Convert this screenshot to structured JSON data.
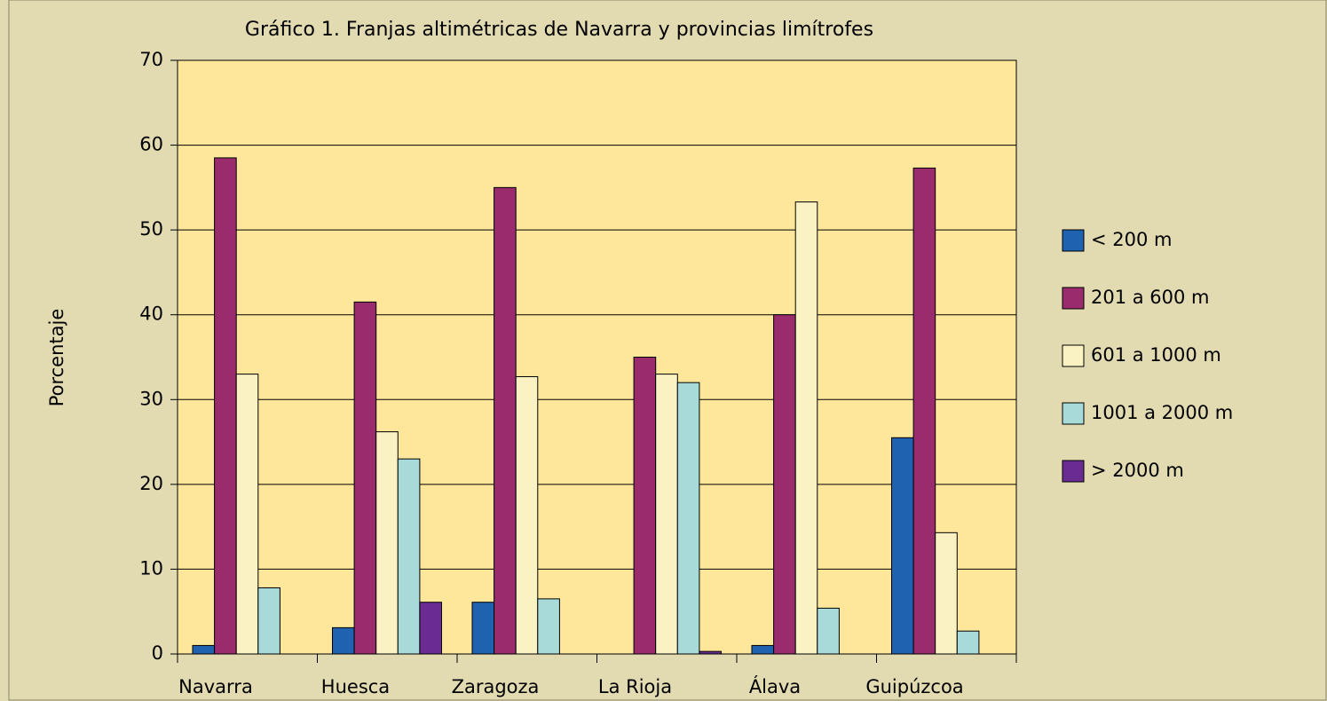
{
  "chart_data": {
    "type": "bar",
    "title": "Gráfico 1. Franjas altimétricas de Navarra y provincias limítrofes",
    "y_label": "Porcentaje",
    "categories": [
      "Navarra",
      "Huesca",
      "Zaragoza",
      "La Rioja",
      "Álava",
      "Guipúzcoa"
    ],
    "series": [
      {
        "name": "< 200 m",
        "color": "#1f63b0",
        "values": [
          1,
          3.1,
          6.1,
          0,
          1,
          25.5
        ]
      },
      {
        "name": "201 a 600 m",
        "color": "#9a2b6d",
        "values": [
          58.5,
          41.5,
          55,
          35,
          40,
          57.3
        ]
      },
      {
        "name": "601 a 1000 m",
        "color": "#fbf2c4",
        "values": [
          33,
          26.2,
          32.7,
          33,
          53.3,
          14.3
        ]
      },
      {
        "name": "1001 a 2000 m",
        "color": "#a8dada",
        "values": [
          7.8,
          23,
          6.5,
          32,
          5.4,
          2.7
        ]
      },
      {
        "name": "> 2000 m",
        "color": "#6a2c92",
        "values": [
          0,
          6.1,
          0,
          0.3,
          0,
          0
        ]
      }
    ],
    "ylim": [
      0,
      70
    ],
    "yticks": [
      0,
      10,
      20,
      30,
      40,
      50,
      60,
      70
    ],
    "grid": true,
    "plot_color": "#fee79b",
    "legend": "right"
  }
}
